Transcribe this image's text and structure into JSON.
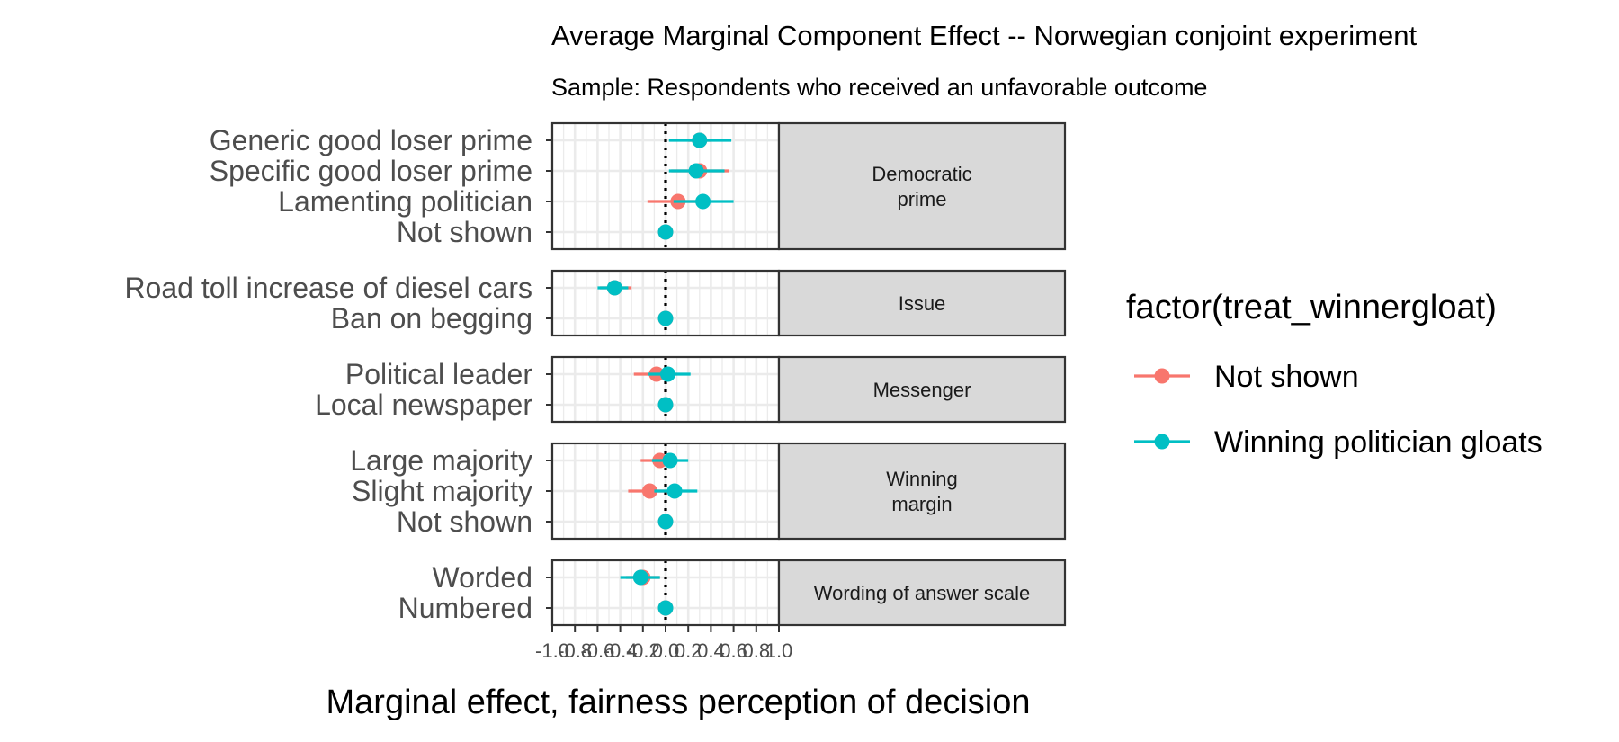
{
  "chart_data": {
    "type": "scatter",
    "title": "Average Marginal Component Effect -- Norwegian conjoint experiment",
    "subtitle": "Sample: Respondents who received an unfavorable outcome",
    "xlabel": "Marginal effect, fairness perception of decision",
    "ylabel": "",
    "xlim": [
      -1.0,
      1.0
    ],
    "x_ticks": [
      "-1.0",
      "-0.8",
      "-0.6",
      "-0.4",
      "-0.2",
      "0.0",
      "0.2",
      "0.4",
      "0.6",
      "0.8",
      "1.0"
    ],
    "reference_line": 0,
    "grid": true,
    "legend": {
      "title": "factor(treat_winnergloat)",
      "position": "right",
      "entries": [
        {
          "name": "Not shown",
          "color": "#F8766D"
        },
        {
          "name": "Winning politician gloats",
          "color": "#00BFC4"
        }
      ]
    },
    "panels": [
      {
        "strip": [
          "Democratic",
          "prime"
        ],
        "levels": [
          "Generic good loser prime",
          "Specific good loser prime",
          "Lamenting politician",
          "Not shown"
        ],
        "series": [
          {
            "name": "Not shown",
            "estimates": [
              0.3,
              0.3,
              0.11,
              0.0
            ],
            "lower": [
              0.2,
              0.05,
              -0.16,
              0.0
            ],
            "upper": [
              0.4,
              0.56,
              0.38,
              0.0
            ]
          },
          {
            "name": "Winning politician gloats",
            "estimates": [
              0.3,
              0.27,
              0.33,
              0.0
            ],
            "lower": [
              0.03,
              0.03,
              0.07,
              0.0
            ],
            "upper": [
              0.58,
              0.52,
              0.6,
              0.0
            ]
          }
        ]
      },
      {
        "strip": [
          "Issue"
        ],
        "levels": [
          "Road toll increase of diesel cars",
          "Ban on begging"
        ],
        "series": [
          {
            "name": "Not shown",
            "estimates": [
              -0.45,
              0.0
            ],
            "lower": [
              -0.58,
              0.0
            ],
            "upper": [
              -0.3,
              0.0
            ]
          },
          {
            "name": "Winning politician gloats",
            "estimates": [
              -0.45,
              0.0
            ],
            "lower": [
              -0.6,
              0.0
            ],
            "upper": [
              -0.33,
              0.0
            ]
          }
        ]
      },
      {
        "strip": [
          "Messenger"
        ],
        "levels": [
          "Political leader",
          "Local newspaper"
        ],
        "series": [
          {
            "name": "Not shown",
            "estimates": [
              -0.08,
              0.0
            ],
            "lower": [
              -0.28,
              0.0
            ],
            "upper": [
              0.1,
              0.0
            ]
          },
          {
            "name": "Winning politician gloats",
            "estimates": [
              0.02,
              0.0
            ],
            "lower": [
              -0.15,
              0.0
            ],
            "upper": [
              0.22,
              0.0
            ]
          }
        ]
      },
      {
        "strip": [
          "Winning",
          "margin"
        ],
        "levels": [
          "Large majority",
          "Slight majority",
          "Not shown"
        ],
        "series": [
          {
            "name": "Not shown",
            "estimates": [
              -0.05,
              -0.14,
              0.0
            ],
            "lower": [
              -0.22,
              -0.33,
              0.0
            ],
            "upper": [
              0.1,
              0.05,
              0.0
            ]
          },
          {
            "name": "Winning politician gloats",
            "estimates": [
              0.04,
              0.08,
              0.0
            ],
            "lower": [
              -0.12,
              -0.1,
              0.0
            ],
            "upper": [
              0.2,
              0.28,
              0.0
            ]
          }
        ]
      },
      {
        "strip": [
          "Wording of answer scale"
        ],
        "levels": [
          "Worded",
          "Numbered"
        ],
        "series": [
          {
            "name": "Not shown",
            "estimates": [
              -0.2,
              0.0
            ],
            "lower": [
              -0.35,
              0.0
            ],
            "upper": [
              -0.05,
              0.0
            ]
          },
          {
            "name": "Winning politician gloats",
            "estimates": [
              -0.22,
              0.0
            ],
            "lower": [
              -0.4,
              0.0
            ],
            "upper": [
              -0.05,
              0.0
            ]
          }
        ]
      }
    ]
  }
}
